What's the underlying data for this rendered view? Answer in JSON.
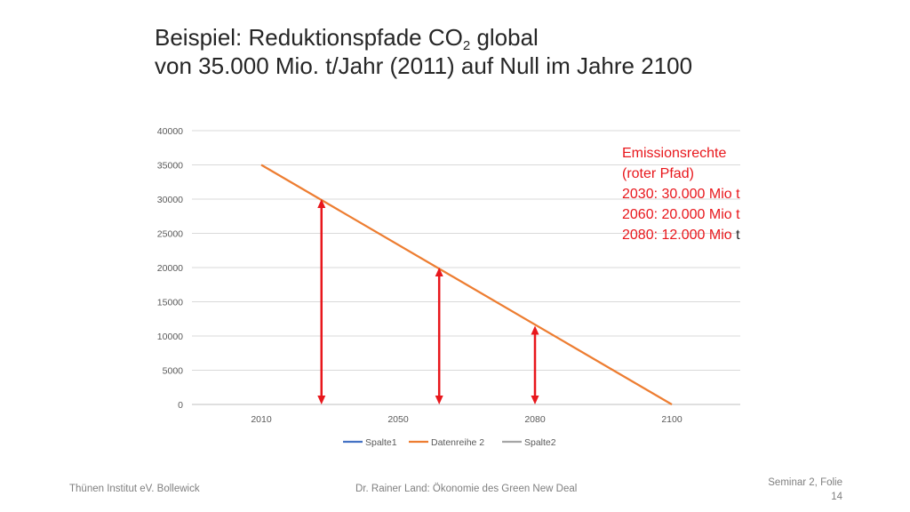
{
  "title": {
    "line1_prefix": "Beispiel: Reduktionspfade CO",
    "line1_sub": "2",
    "line1_suffix": " global",
    "line2": "von 35.000 Mio. t/Jahr (2011) auf Null im Jahre 2100"
  },
  "chart_data": {
    "type": "line",
    "title": "",
    "xlabel": "",
    "ylabel": "",
    "categories": [
      "2010",
      "2050",
      "2080",
      "2100"
    ],
    "ylim": [
      0,
      40000
    ],
    "y_ticks": [
      0,
      5000,
      10000,
      15000,
      20000,
      25000,
      30000,
      35000,
      40000
    ],
    "grid": true,
    "legend_position": "bottom",
    "series": [
      {
        "name": "Spalte1",
        "color": "#4472c4",
        "points": []
      },
      {
        "name": "Datenreihe 2",
        "color": "#ed7d31",
        "points": [
          [
            0,
            35000
          ],
          [
            3,
            0
          ]
        ]
      },
      {
        "name": "Spalte2",
        "color": "#a5a5a5",
        "points": []
      }
    ],
    "annotations": {
      "arrows": [
        {
          "x": 0.44,
          "y_top": 30000,
          "color": "#e8171c"
        },
        {
          "x": 1.3,
          "y_top": 20000,
          "color": "#e8171c"
        },
        {
          "x": 2.0,
          "y_top": 11500,
          "color": "#e8171c"
        }
      ],
      "note_lines": [
        "Emissionsrechte",
        "(roter Pfad)",
        "2030: 30.000 Mio t",
        "2060: 20.000 Mio t",
        "2080: 12.000 Mio "
      ],
      "note_last_char": "t"
    }
  },
  "footer": {
    "left": "Thünen Institut eV. Bollewick",
    "center": "Dr. Rainer Land: Ökonomie des Green New Deal",
    "right": "Seminar 2, Folie 14"
  }
}
